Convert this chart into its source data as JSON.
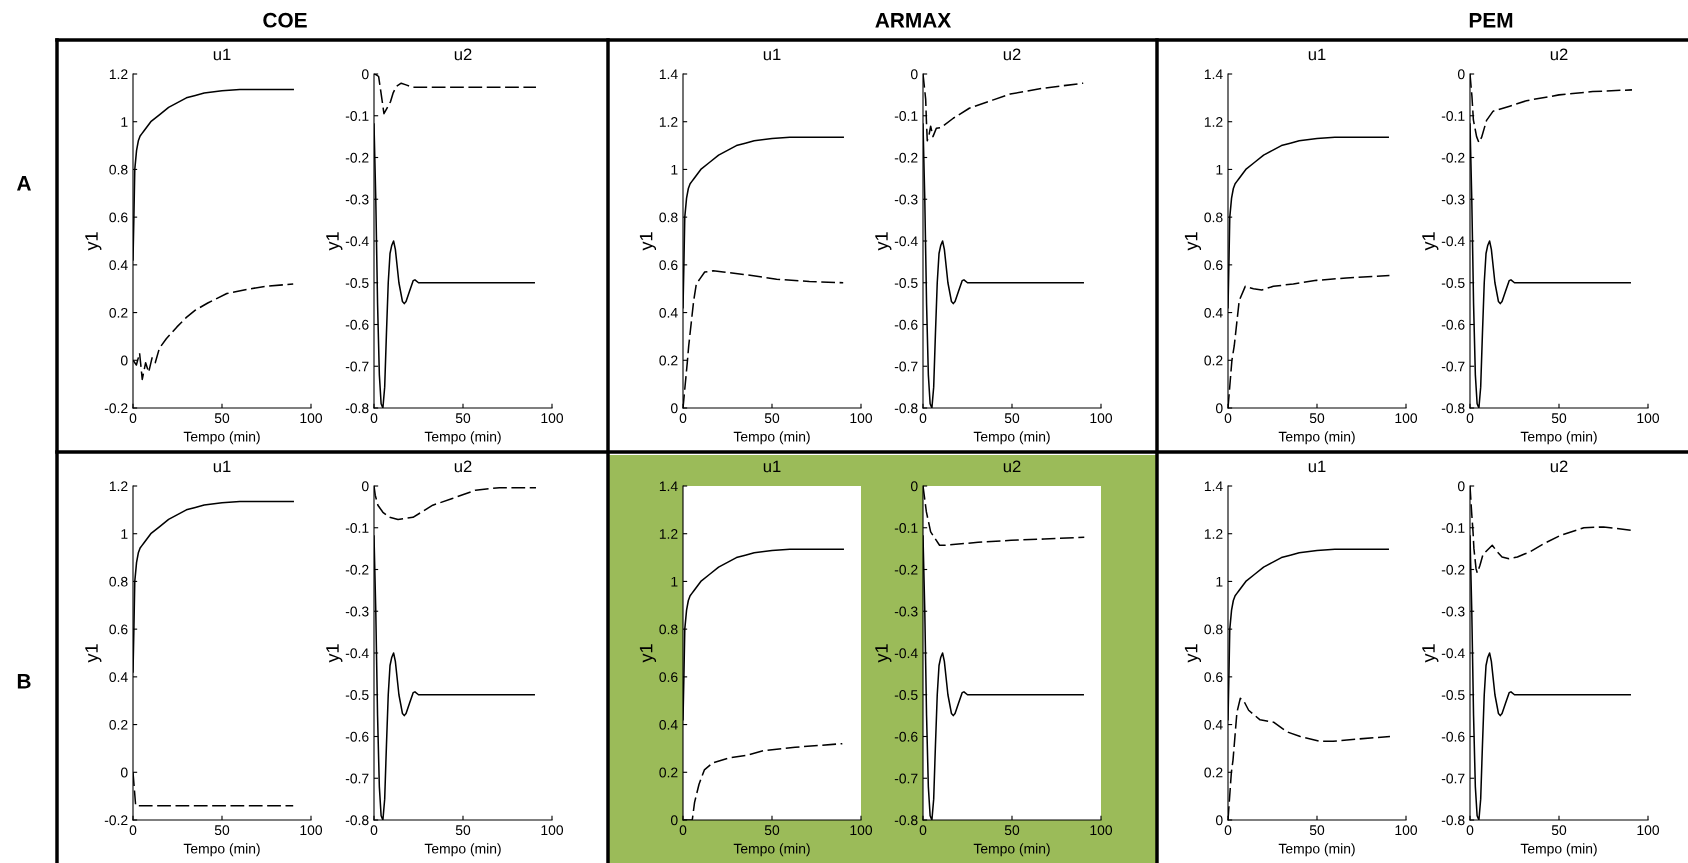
{
  "chart_data": [
    {
      "type": "line",
      "title": "u1",
      "xlabel": "Tempo (min)",
      "ylabel": "y1",
      "xlim": [
        0,
        100
      ],
      "xticks": [
        0,
        50,
        100
      ],
      "ylim": [
        -0.2,
        1.2
      ],
      "yticks": [
        -0.2,
        0,
        0.2,
        0.4,
        0.6,
        0.8,
        1,
        1.2
      ],
      "series": [
        {
          "color": "#000000",
          "line_style": "solid",
          "x": [
            0,
            0.5,
            1,
            2,
            3,
            4,
            5,
            6,
            8,
            10,
            15,
            20,
            25,
            30,
            35,
            40,
            50,
            60,
            70,
            80,
            90
          ],
          "values": [
            0.42,
            0.6,
            0.8,
            0.88,
            0.92,
            0.94,
            0.95,
            0.96,
            0.98,
            1.0,
            1.03,
            1.06,
            1.08,
            1.1,
            1.11,
            1.12,
            1.13,
            1.135,
            1.135,
            1.135,
            1.135
          ]
        },
        {
          "color": "#000000",
          "line_style": "dashed",
          "x": [
            0,
            1.9,
            3.7,
            5.2,
            7.1,
            8.8,
            10.7,
            12.5,
            14.8,
            18.7,
            24.7,
            30,
            35,
            42,
            52.7,
            66,
            75,
            90
          ],
          "values": [
            0,
            -0.02,
            0.03,
            -0.08,
            -0.01,
            -0.05,
            0.01,
            -0.01,
            0.05,
            0.09,
            0.14,
            0.18,
            0.21,
            0.24,
            0.28,
            0.3,
            0.31,
            0.32
          ]
        }
      ]
    },
    {
      "type": "line",
      "title": "u2",
      "xlabel": "Tempo (min)",
      "ylabel": "y1",
      "xlim": [
        0,
        100
      ],
      "xticks": [
        0,
        50,
        100
      ],
      "ylim": [
        -0.8,
        0
      ],
      "yticks": [
        -0.8,
        -0.7,
        -0.6,
        -0.5,
        -0.4,
        -0.3,
        -0.2,
        -0.1,
        0
      ],
      "series": [
        {
          "color": "#000000",
          "line_style": "solid",
          "x": [
            0,
            1,
            2,
            3,
            4,
            5,
            6,
            7,
            8,
            9,
            10,
            11,
            12,
            14,
            16,
            17,
            18,
            20,
            22,
            23,
            25,
            30,
            90
          ],
          "values": [
            -0.12,
            -0.3,
            -0.55,
            -0.72,
            -0.79,
            -0.8,
            -0.75,
            -0.62,
            -0.5,
            -0.43,
            -0.41,
            -0.4,
            -0.42,
            -0.5,
            -0.545,
            -0.55,
            -0.545,
            -0.52,
            -0.495,
            -0.493,
            -0.5,
            -0.5,
            -0.5
          ]
        },
        {
          "color": "#000000",
          "line_style": "dashed",
          "x": [
            0,
            1.3,
            2.6,
            4.1,
            5.6,
            9.3,
            10.7,
            12.5,
            15.3,
            18,
            21.9,
            29,
            91
          ],
          "values": [
            0,
            -0.002,
            -0.006,
            -0.05,
            -0.095,
            -0.066,
            -0.046,
            -0.03,
            -0.022,
            -0.026,
            -0.032,
            -0.032,
            -0.032
          ]
        }
      ]
    },
    {
      "type": "line",
      "title": "u1",
      "xlabel": "Tempo (min)",
      "ylabel": "y1",
      "xlim": [
        0,
        100
      ],
      "xticks": [
        0,
        50,
        100
      ],
      "ylim": [
        0,
        1.4
      ],
      "yticks": [
        0,
        0.2,
        0.4,
        0.6,
        0.8,
        1,
        1.2,
        1.4
      ],
      "series": [
        {
          "color": "#000000",
          "line_style": "solid",
          "x": [
            0,
            0.5,
            1,
            2,
            3,
            4,
            5,
            6,
            8,
            10,
            15,
            20,
            25,
            30,
            35,
            40,
            50,
            60,
            70,
            80,
            90
          ],
          "values": [
            0.42,
            0.6,
            0.8,
            0.88,
            0.92,
            0.94,
            0.95,
            0.96,
            0.98,
            1.0,
            1.03,
            1.06,
            1.08,
            1.1,
            1.11,
            1.12,
            1.13,
            1.135,
            1.135,
            1.135,
            1.135
          ]
        },
        {
          "color": "#000000",
          "line_style": "dashed",
          "x": [
            0,
            2.4,
            3.2,
            6,
            7.5,
            9.4,
            12.2,
            17,
            22.6,
            34,
            52.6,
            71,
            90
          ],
          "values": [
            0,
            0.19,
            0.26,
            0.45,
            0.52,
            0.54,
            0.57,
            0.575,
            0.57,
            0.56,
            0.54,
            0.53,
            0.525
          ]
        }
      ]
    },
    {
      "type": "line",
      "title": "u2",
      "xlabel": "Tempo (min)",
      "ylabel": "y1",
      "xlim": [
        0,
        100
      ],
      "xticks": [
        0,
        50,
        100
      ],
      "ylim": [
        -0.8,
        0
      ],
      "yticks": [
        -0.8,
        -0.7,
        -0.6,
        -0.5,
        -0.4,
        -0.3,
        -0.2,
        -0.1,
        0
      ],
      "series": [
        {
          "color": "#000000",
          "line_style": "solid",
          "x": [
            0,
            1,
            2,
            3,
            4,
            5,
            6,
            7,
            8,
            9,
            10,
            11,
            12,
            14,
            16,
            17,
            18,
            20,
            22,
            23,
            25,
            30,
            90
          ],
          "values": [
            -0.12,
            -0.3,
            -0.55,
            -0.72,
            -0.79,
            -0.8,
            -0.75,
            -0.62,
            -0.5,
            -0.43,
            -0.41,
            -0.4,
            -0.42,
            -0.5,
            -0.545,
            -0.55,
            -0.545,
            -0.52,
            -0.495,
            -0.493,
            -0.5,
            -0.5,
            -0.5
          ]
        },
        {
          "color": "#000000",
          "line_style": "dashed",
          "x": [
            0,
            1.5,
            1.9,
            2.4,
            3.4,
            4.3,
            5.6,
            7.5,
            10.3,
            17,
            26,
            39.5,
            49,
            67.7,
            90
          ],
          "values": [
            0,
            -0.06,
            -0.11,
            -0.16,
            -0.146,
            -0.125,
            -0.15,
            -0.13,
            -0.128,
            -0.106,
            -0.082,
            -0.062,
            -0.048,
            -0.034,
            -0.022
          ]
        }
      ]
    },
    {
      "type": "line",
      "title": "u1",
      "xlabel": "Tempo (min)",
      "ylabel": "y1",
      "xlim": [
        0,
        100
      ],
      "xticks": [
        0,
        50,
        100
      ],
      "ylim": [
        0,
        1.4
      ],
      "yticks": [
        0,
        0.2,
        0.4,
        0.6,
        0.8,
        1,
        1.2,
        1.4
      ],
      "series": [
        {
          "color": "#000000",
          "line_style": "solid",
          "x": [
            0,
            0.5,
            1,
            2,
            3,
            4,
            5,
            6,
            8,
            10,
            15,
            20,
            25,
            30,
            35,
            40,
            50,
            60,
            70,
            80,
            90
          ],
          "values": [
            0.42,
            0.6,
            0.8,
            0.88,
            0.92,
            0.94,
            0.95,
            0.96,
            0.98,
            1.0,
            1.03,
            1.06,
            1.08,
            1.1,
            1.11,
            1.12,
            1.13,
            1.135,
            1.135,
            1.135,
            1.135
          ]
        },
        {
          "color": "#000000",
          "line_style": "dashed",
          "x": [
            0,
            2.2,
            3.5,
            6.3,
            9.7,
            14.3,
            19,
            25.5,
            36.7,
            49.7,
            66.5,
            90.7
          ],
          "values": [
            0,
            0.2,
            0.26,
            0.45,
            0.51,
            0.5,
            0.495,
            0.51,
            0.52,
            0.535,
            0.545,
            0.555
          ]
        }
      ]
    },
    {
      "type": "line",
      "title": "u2",
      "xlabel": "Tempo (min)",
      "ylabel": "y1",
      "xlim": [
        0,
        100
      ],
      "xticks": [
        0,
        50,
        100
      ],
      "ylim": [
        -0.8,
        0
      ],
      "yticks": [
        -0.8,
        -0.7,
        -0.6,
        -0.5,
        -0.4,
        -0.3,
        -0.2,
        -0.1,
        0
      ],
      "series": [
        {
          "color": "#000000",
          "line_style": "solid",
          "x": [
            0,
            1,
            2,
            3,
            4,
            5,
            6,
            7,
            8,
            9,
            10,
            11,
            12,
            14,
            16,
            17,
            18,
            20,
            22,
            23,
            25,
            30,
            90
          ],
          "values": [
            -0.12,
            -0.3,
            -0.55,
            -0.72,
            -0.79,
            -0.8,
            -0.75,
            -0.62,
            -0.5,
            -0.43,
            -0.41,
            -0.4,
            -0.42,
            -0.5,
            -0.545,
            -0.55,
            -0.545,
            -0.52,
            -0.495,
            -0.493,
            -0.5,
            -0.5,
            -0.5
          ]
        },
        {
          "color": "#000000",
          "line_style": "dashed",
          "x": [
            0,
            1.1,
            1.9,
            3.7,
            5,
            6.5,
            9.3,
            13,
            22.3,
            31.7,
            50,
            69,
            91
          ],
          "values": [
            0,
            -0.054,
            -0.11,
            -0.15,
            -0.164,
            -0.152,
            -0.111,
            -0.089,
            -0.077,
            -0.064,
            -0.05,
            -0.042,
            -0.038
          ]
        }
      ]
    },
    {
      "type": "line",
      "title": "u1",
      "xlabel": "Tempo (min)",
      "ylabel": "y1",
      "xlim": [
        0,
        100
      ],
      "xticks": [
        0,
        50,
        100
      ],
      "ylim": [
        -0.2,
        1.2
      ],
      "yticks": [
        -0.2,
        0,
        0.2,
        0.4,
        0.6,
        0.8,
        1,
        1.2
      ],
      "series": [
        {
          "color": "#000000",
          "line_style": "solid",
          "x": [
            0,
            0.5,
            1,
            2,
            3,
            4,
            5,
            6,
            8,
            10,
            15,
            20,
            25,
            30,
            35,
            40,
            50,
            60,
            70,
            80,
            90
          ],
          "values": [
            0.42,
            0.6,
            0.8,
            0.88,
            0.92,
            0.94,
            0.95,
            0.96,
            0.98,
            1.0,
            1.03,
            1.06,
            1.08,
            1.1,
            1.11,
            1.12,
            1.13,
            1.135,
            1.135,
            1.135,
            1.135
          ]
        },
        {
          "color": "#000000",
          "line_style": "dashed",
          "x": [
            0,
            1.5,
            30,
            60,
            90
          ],
          "values": [
            0,
            -0.14,
            -0.14,
            -0.14,
            -0.14
          ]
        }
      ]
    },
    {
      "type": "line",
      "title": "u2",
      "xlabel": "Tempo (min)",
      "ylabel": "y1",
      "xlim": [
        0,
        100
      ],
      "xticks": [
        0,
        50,
        100
      ],
      "ylim": [
        -0.8,
        0
      ],
      "yticks": [
        -0.8,
        -0.7,
        -0.6,
        -0.5,
        -0.4,
        -0.3,
        -0.2,
        -0.1,
        0
      ],
      "series": [
        {
          "color": "#000000",
          "line_style": "solid",
          "x": [
            0,
            1,
            2,
            3,
            4,
            5,
            6,
            7,
            8,
            9,
            10,
            11,
            12,
            14,
            16,
            17,
            18,
            20,
            22,
            23,
            25,
            30,
            90
          ],
          "values": [
            -0.12,
            -0.3,
            -0.55,
            -0.72,
            -0.79,
            -0.8,
            -0.75,
            -0.62,
            -0.5,
            -0.43,
            -0.41,
            -0.4,
            -0.42,
            -0.5,
            -0.545,
            -0.55,
            -0.545,
            -0.52,
            -0.495,
            -0.493,
            -0.5,
            -0.5,
            -0.5
          ]
        },
        {
          "color": "#000000",
          "line_style": "dashed",
          "x": [
            0,
            0.7,
            2.2,
            5,
            8.8,
            13.5,
            21.9,
            33,
            44,
            57,
            70.5,
            91
          ],
          "values": [
            0,
            -0.022,
            -0.046,
            -0.063,
            -0.075,
            -0.08,
            -0.075,
            -0.046,
            -0.03,
            -0.01,
            -0.004,
            -0.004
          ]
        }
      ]
    },
    {
      "type": "line",
      "title": "u1",
      "xlabel": "Tempo (min)",
      "ylabel": "y1",
      "xlim": [
        0,
        100
      ],
      "xticks": [
        0,
        50,
        100
      ],
      "ylim": [
        0,
        1.4
      ],
      "yticks": [
        0,
        0.2,
        0.4,
        0.6,
        0.8,
        1,
        1.2,
        1.4
      ],
      "series": [
        {
          "color": "#000000",
          "line_style": "solid",
          "x": [
            0,
            0.5,
            1,
            2,
            3,
            4,
            5,
            6,
            8,
            10,
            15,
            20,
            25,
            30,
            35,
            40,
            50,
            60,
            70,
            80,
            90
          ],
          "values": [
            0.42,
            0.6,
            0.8,
            0.88,
            0.92,
            0.94,
            0.95,
            0.96,
            0.98,
            1.0,
            1.03,
            1.06,
            1.08,
            1.1,
            1.11,
            1.12,
            1.13,
            1.135,
            1.135,
            1.135,
            1.135
          ]
        },
        {
          "color": "#000000",
          "line_style": "dashed",
          "x": [
            0,
            5.2,
            6.5,
            9,
            12,
            16.8,
            26,
            35,
            45,
            63,
            89.5
          ],
          "values": [
            0,
            0,
            0.074,
            0.15,
            0.21,
            0.24,
            0.26,
            0.27,
            0.29,
            0.305,
            0.32
          ]
        }
      ]
    },
    {
      "type": "line",
      "title": "u2",
      "xlabel": "Tempo (min)",
      "ylabel": "y1",
      "xlim": [
        0,
        100
      ],
      "xticks": [
        0,
        50,
        100
      ],
      "ylim": [
        -0.8,
        0
      ],
      "yticks": [
        -0.8,
        -0.7,
        -0.6,
        -0.5,
        -0.4,
        -0.3,
        -0.2,
        -0.1,
        0
      ],
      "series": [
        {
          "color": "#000000",
          "line_style": "solid",
          "x": [
            0,
            1,
            2,
            3,
            4,
            5,
            6,
            7,
            8,
            9,
            10,
            11,
            12,
            14,
            16,
            17,
            18,
            20,
            22,
            23,
            25,
            30,
            90
          ],
          "values": [
            -0.12,
            -0.3,
            -0.55,
            -0.72,
            -0.79,
            -0.8,
            -0.75,
            -0.62,
            -0.5,
            -0.43,
            -0.41,
            -0.4,
            -0.42,
            -0.5,
            -0.545,
            -0.55,
            -0.545,
            -0.52,
            -0.495,
            -0.493,
            -0.5,
            -0.5,
            -0.5
          ]
        },
        {
          "color": "#000000",
          "line_style": "dashed",
          "x": [
            0,
            1.9,
            4.3,
            9.3,
            12,
            31,
            49.5,
            68,
            90.6
          ],
          "values": [
            0,
            -0.062,
            -0.11,
            -0.142,
            -0.142,
            -0.135,
            -0.13,
            -0.127,
            -0.123
          ]
        }
      ]
    },
    {
      "type": "line",
      "title": "u1",
      "xlabel": "Tempo (min)",
      "ylabel": "y1",
      "xlim": [
        0,
        100
      ],
      "xticks": [
        0,
        50,
        100
      ],
      "ylim": [
        0,
        1.4
      ],
      "yticks": [
        0,
        0.2,
        0.4,
        0.6,
        0.8,
        1,
        1.2,
        1.4
      ],
      "series": [
        {
          "color": "#000000",
          "line_style": "solid",
          "x": [
            0,
            0.5,
            1,
            2,
            3,
            4,
            5,
            6,
            8,
            10,
            15,
            20,
            25,
            30,
            35,
            40,
            50,
            60,
            70,
            80,
            90
          ],
          "values": [
            0.42,
            0.6,
            0.8,
            0.88,
            0.92,
            0.94,
            0.95,
            0.96,
            0.98,
            1.0,
            1.03,
            1.06,
            1.08,
            1.1,
            1.11,
            1.12,
            1.13,
            1.135,
            1.135,
            1.135,
            1.135
          ]
        },
        {
          "color": "#000000",
          "line_style": "dashed",
          "x": [
            0,
            1.9,
            2.8,
            5,
            6.9,
            8.8,
            11.6,
            18,
            25.6,
            33,
            40.6,
            51.8,
            59,
            74,
            91
          ],
          "values": [
            0,
            0.2,
            0.25,
            0.45,
            0.51,
            0.5,
            0.46,
            0.42,
            0.41,
            0.37,
            0.35,
            0.33,
            0.33,
            0.34,
            0.35
          ]
        }
      ]
    },
    {
      "type": "line",
      "title": "u2",
      "xlabel": "Tempo (min)",
      "ylabel": "y1",
      "xlim": [
        0,
        100
      ],
      "xticks": [
        0,
        50,
        100
      ],
      "ylim": [
        -0.8,
        0
      ],
      "yticks": [
        -0.8,
        -0.7,
        -0.6,
        -0.5,
        -0.4,
        -0.3,
        -0.2,
        -0.1,
        0
      ],
      "series": [
        {
          "color": "#000000",
          "line_style": "solid",
          "x": [
            0,
            1,
            2,
            3,
            4,
            5,
            6,
            7,
            8,
            9,
            10,
            11,
            12,
            14,
            16,
            17,
            18,
            20,
            22,
            23,
            25,
            30,
            90
          ],
          "values": [
            -0.12,
            -0.3,
            -0.55,
            -0.72,
            -0.79,
            -0.8,
            -0.75,
            -0.62,
            -0.5,
            -0.43,
            -0.41,
            -0.4,
            -0.42,
            -0.5,
            -0.545,
            -0.55,
            -0.545,
            -0.52,
            -0.495,
            -0.493,
            -0.5,
            -0.5,
            -0.5
          ]
        },
        {
          "color": "#000000",
          "line_style": "dashed",
          "x": [
            0,
            0.9,
            1.7,
            2.2,
            3.4,
            4.1,
            5.6,
            7.3,
            12.5,
            15.4,
            18,
            21.9,
            26.6,
            34,
            41.6,
            51,
            64,
            75,
            90.3
          ],
          "values": [
            0,
            -0.062,
            -0.11,
            -0.15,
            -0.198,
            -0.208,
            -0.19,
            -0.164,
            -0.142,
            -0.158,
            -0.17,
            -0.174,
            -0.17,
            -0.157,
            -0.138,
            -0.118,
            -0.1,
            -0.098,
            -0.106
          ]
        }
      ]
    },
    {
      "type": "other",
      "annotations": [
        "COE",
        "ARMAX",
        "PEM",
        "A",
        "B"
      ]
    }
  ]
}
